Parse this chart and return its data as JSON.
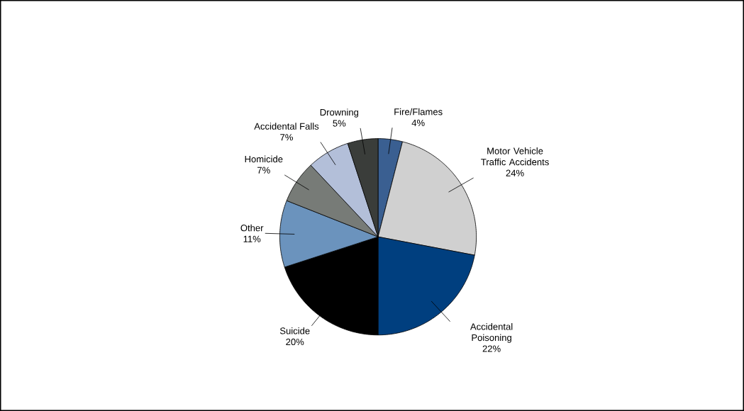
{
  "chart_data": {
    "type": "pie",
    "categories": [
      "Fire/Flames",
      "Motor Vehicle Traffic Accidents",
      "Accidental Poisoning",
      "Suicide",
      "Other",
      "Homicide",
      "Accidental Falls",
      "Drowning"
    ],
    "values": [
      4,
      24,
      22,
      20,
      11,
      7,
      7,
      5
    ],
    "value_labels": [
      "4%",
      "24%",
      "22%",
      "20%",
      "11%",
      "7%",
      "7%",
      "5%"
    ],
    "colors": [
      "#3a5f91",
      "#d0d0d0",
      "#003f7f",
      "#000000",
      "#6b93bd",
      "#777b77",
      "#b3bfd9",
      "#3a3d3a"
    ]
  }
}
